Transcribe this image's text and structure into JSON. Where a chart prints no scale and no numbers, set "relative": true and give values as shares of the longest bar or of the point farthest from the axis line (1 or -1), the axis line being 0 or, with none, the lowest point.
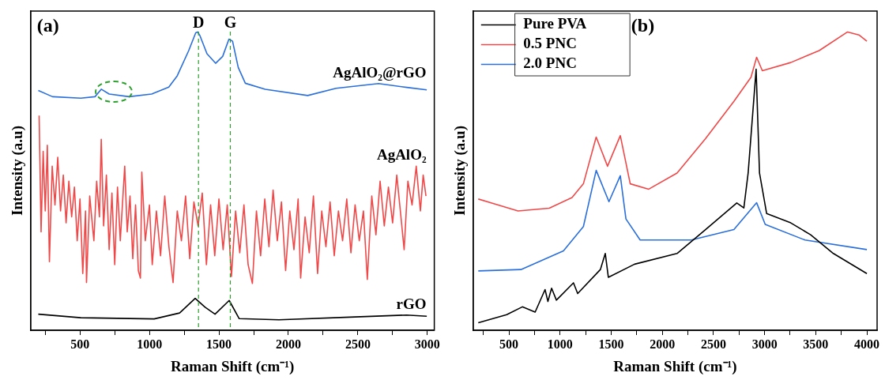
{
  "chart_data": [
    {
      "type": "line",
      "title": "(a)",
      "xlabel": "Raman Shift (cm⁻¹)",
      "ylabel": "Intensity (a.u)",
      "relative": true,
      "xlim": [
        145,
        3050
      ],
      "xticks": [
        {
          "value": 250,
          "label": null
        },
        500,
        {
          "value": 750,
          "label": null
        },
        1000,
        {
          "value": 1250,
          "label": null
        },
        1500,
        {
          "value": 1750,
          "label": null
        },
        2000,
        {
          "value": 2250,
          "label": null
        },
        2500,
        {
          "value": 2750,
          "label": null
        },
        3000
      ],
      "grid": false,
      "legend": false,
      "ref_lines": [
        {
          "axis": "x",
          "value": 1353,
          "label": "D",
          "color": "#2ca02c",
          "line_style": "dashed"
        },
        {
          "axis": "x",
          "value": 1582,
          "label": "G",
          "color": "#2ca02c",
          "line_style": "dashed"
        }
      ],
      "series": [
        {
          "name": "AgAlO₂@rGO",
          "color": "#2a6fdb",
          "x": [
            200,
            302,
            506,
            608,
            653,
            710,
            853,
            1016,
            1139,
            1200,
            1282,
            1333,
            1347,
            1363,
            1414,
            1476,
            1527,
            1572,
            1598,
            1639,
            1690,
            1833,
            2139,
            2343,
            2649,
            2853,
            2996
          ],
          "values": [
            0.804,
            0.783,
            0.778,
            0.783,
            0.808,
            0.792,
            0.783,
            0.792,
            0.815,
            0.853,
            0.937,
            0.997,
            1.0,
            0.988,
            0.927,
            0.895,
            0.918,
            0.976,
            0.969,
            0.881,
            0.828,
            0.808,
            0.787,
            0.811,
            0.827,
            0.814,
            0.806
          ]
        },
        {
          "name": "AgAlO₂",
          "color": "#f04848",
          "x": [
            206,
            220,
            235,
            250,
            265,
            280,
            300,
            320,
            340,
            360,
            380,
            400,
            420,
            440,
            460,
            480,
            500,
            520,
            540,
            547,
            570,
            600,
            620,
            640,
            653,
            670,
            690,
            710,
            730,
            750,
            770,
            790,
            822,
            840,
            860,
            880,
            900,
            920,
            935,
            945,
            970,
            1000,
            1020,
            1050,
            1080,
            1110,
            1140,
            1170,
            1200,
            1230,
            1260,
            1290,
            1320,
            1350,
            1380,
            1410,
            1440,
            1470,
            1500,
            1530,
            1560,
            1590,
            1620,
            1650,
            1680,
            1710,
            1741,
            1770,
            1800,
            1830,
            1860,
            1890,
            1920,
            1950,
            1980,
            2010,
            2040,
            2070,
            2088,
            2120,
            2150,
            2180,
            2210,
            2240,
            2270,
            2300,
            2330,
            2360,
            2390,
            2420,
            2450,
            2480,
            2510,
            2540,
            2568,
            2600,
            2630,
            2660,
            2690,
            2720,
            2750,
            2780,
            2810,
            2833,
            2860,
            2890,
            2920,
            2950,
            2970,
            2990
          ],
          "values": [
            0.72,
            0.33,
            0.6,
            0.4,
            0.62,
            0.23,
            0.55,
            0.42,
            0.58,
            0.4,
            0.52,
            0.36,
            0.5,
            0.38,
            0.48,
            0.3,
            0.44,
            0.19,
            0.4,
            0.16,
            0.45,
            0.3,
            0.5,
            0.38,
            0.64,
            0.35,
            0.52,
            0.27,
            0.46,
            0.22,
            0.48,
            0.3,
            0.55,
            0.33,
            0.45,
            0.24,
            0.42,
            0.2,
            0.175,
            0.53,
            0.3,
            0.42,
            0.22,
            0.4,
            0.25,
            0.45,
            0.28,
            0.16,
            0.4,
            0.3,
            0.45,
            0.24,
            0.43,
            0.35,
            0.46,
            0.22,
            0.42,
            0.25,
            0.44,
            0.27,
            0.42,
            0.18,
            0.4,
            0.26,
            0.42,
            0.22,
            0.157,
            0.4,
            0.25,
            0.44,
            0.28,
            0.47,
            0.3,
            0.43,
            0.2,
            0.4,
            0.27,
            0.44,
            0.175,
            0.38,
            0.26,
            0.45,
            0.19,
            0.4,
            0.28,
            0.43,
            0.25,
            0.4,
            0.3,
            0.44,
            0.26,
            0.42,
            0.3,
            0.4,
            0.17,
            0.45,
            0.32,
            0.5,
            0.35,
            0.48,
            0.36,
            0.52,
            0.38,
            0.27,
            0.5,
            0.42,
            0.55,
            0.4,
            0.52,
            0.45
          ]
        },
        {
          "name": "rGO",
          "color": "#000000",
          "x": [
            200,
            506,
            1034,
            1217,
            1329,
            1401,
            1472,
            1574,
            1646,
            1932,
            2443,
            2851,
            2996
          ],
          "values": [
            0.054,
            0.042,
            0.038,
            0.058,
            0.107,
            0.077,
            0.054,
            0.1,
            0.039,
            0.035,
            0.044,
            0.051,
            0.047
          ]
        }
      ]
    },
    {
      "type": "line",
      "title": "(b)",
      "xlabel": "Raman Shift (cm⁻¹)",
      "ylabel": "Intensity (a.u)",
      "relative": true,
      "xlim": [
        150,
        4100
      ],
      "xticks": [
        {
          "value": 250,
          "label": null
        },
        500,
        {
          "value": 750,
          "label": null
        },
        1000,
        {
          "value": 1250,
          "label": null
        },
        1500,
        {
          "value": 1750,
          "label": null
        },
        2000,
        {
          "value": 2250,
          "label": null
        },
        2500,
        {
          "value": 2750,
          "label": null
        },
        3000,
        {
          "value": 3250,
          "label": null
        },
        3500,
        {
          "value": 3750,
          "label": null
        },
        4000
      ],
      "grid": false,
      "legend": "top left",
      "series": [
        {
          "name": "Pure PVA",
          "color": "#000000",
          "x": [
            200,
            478,
            631,
            756,
            853,
            881,
            917,
            964,
            1131,
            1172,
            1394,
            1442,
            1472,
            1728,
            2144,
            2422,
            2728,
            2797,
            2839,
            2917,
            2950,
            3020,
            3256,
            3450,
            3672,
            4000
          ],
          "values": [
            0.025,
            0.0525,
            0.0785,
            0.061,
            0.1365,
            0.0965,
            0.141,
            0.101,
            0.159,
            0.123,
            0.2035,
            0.2575,
            0.1775,
            0.2215,
            0.2575,
            0.3375,
            0.427,
            0.41,
            0.5275,
            0.875,
            0.5275,
            0.391,
            0.36,
            0.32,
            0.2575,
            0.19
          ]
        },
        {
          "name": "0.5 PNC",
          "color": "#f04848",
          "x": [
            200,
            589,
            894,
            1117,
            1228,
            1353,
            1464,
            1589,
            1686,
            1867,
            2144,
            2422,
            2700,
            2867,
            2922,
            2978,
            3256,
            3534,
            3811,
            3922,
            4000
          ],
          "values": [
            0.44,
            0.4,
            0.409,
            0.445,
            0.491,
            0.6475,
            0.55,
            0.6525,
            0.491,
            0.473,
            0.527,
            0.6425,
            0.7675,
            0.848,
            0.915,
            0.87,
            0.8975,
            0.9375,
            1.0,
            0.99,
            0.969
          ]
        },
        {
          "name": "2.0 PNC",
          "color": "#2a6fdb",
          "x": [
            200,
            617,
            1033,
            1228,
            1353,
            1478,
            1589,
            1644,
            1783,
            2283,
            2700,
            2922,
            3006,
            3395,
            4000
          ],
          "values": [
            0.199,
            0.2035,
            0.266,
            0.3475,
            0.536,
            0.431,
            0.518,
            0.373,
            0.3025,
            0.3025,
            0.3375,
            0.4275,
            0.355,
            0.3025,
            0.2705
          ]
        }
      ]
    }
  ]
}
